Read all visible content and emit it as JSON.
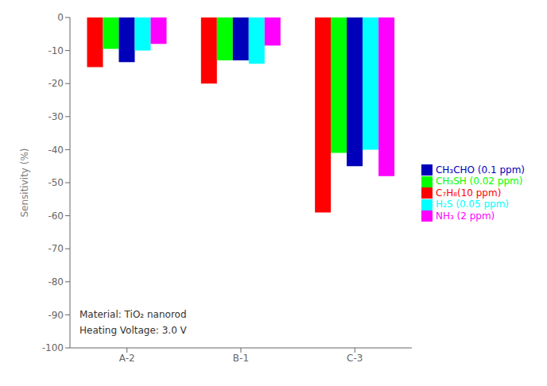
{
  "chart_data": {
    "type": "bar",
    "categories": [
      "A-2",
      "B-1",
      "C-3"
    ],
    "series": [
      {
        "name": "C₇H₈(10 ppm)",
        "color": "#ff0000",
        "values": [
          -15,
          -20,
          -59
        ]
      },
      {
        "name": "CH₃SH (0.02 ppm)",
        "color": "#00ff00",
        "values": [
          -9.5,
          -13,
          -41
        ]
      },
      {
        "name": "CH₃CHO (0.1 ppm)",
        "color": "#0000bb",
        "values": [
          -13.5,
          -13,
          -45
        ]
      },
      {
        "name": "H₂S (0.05 ppm)",
        "color": "#00ffff",
        "values": [
          -10,
          -14,
          -40
        ]
      },
      {
        "name": "NH₃ (2 ppm)",
        "color": "#ff00ff",
        "values": [
          -8,
          -8.5,
          -48
        ]
      }
    ],
    "ylabel": "Sensitivity (%)",
    "ylim": [
      -100,
      0
    ],
    "yticks": [
      0,
      -10,
      -20,
      -30,
      -40,
      -50,
      -60,
      -70,
      -80,
      -90,
      -100
    ],
    "annotations": [
      "Material: TiO₂ nanorod",
      "Heating Voltage: 3.0 V"
    ],
    "legend": "right",
    "grid": false
  }
}
